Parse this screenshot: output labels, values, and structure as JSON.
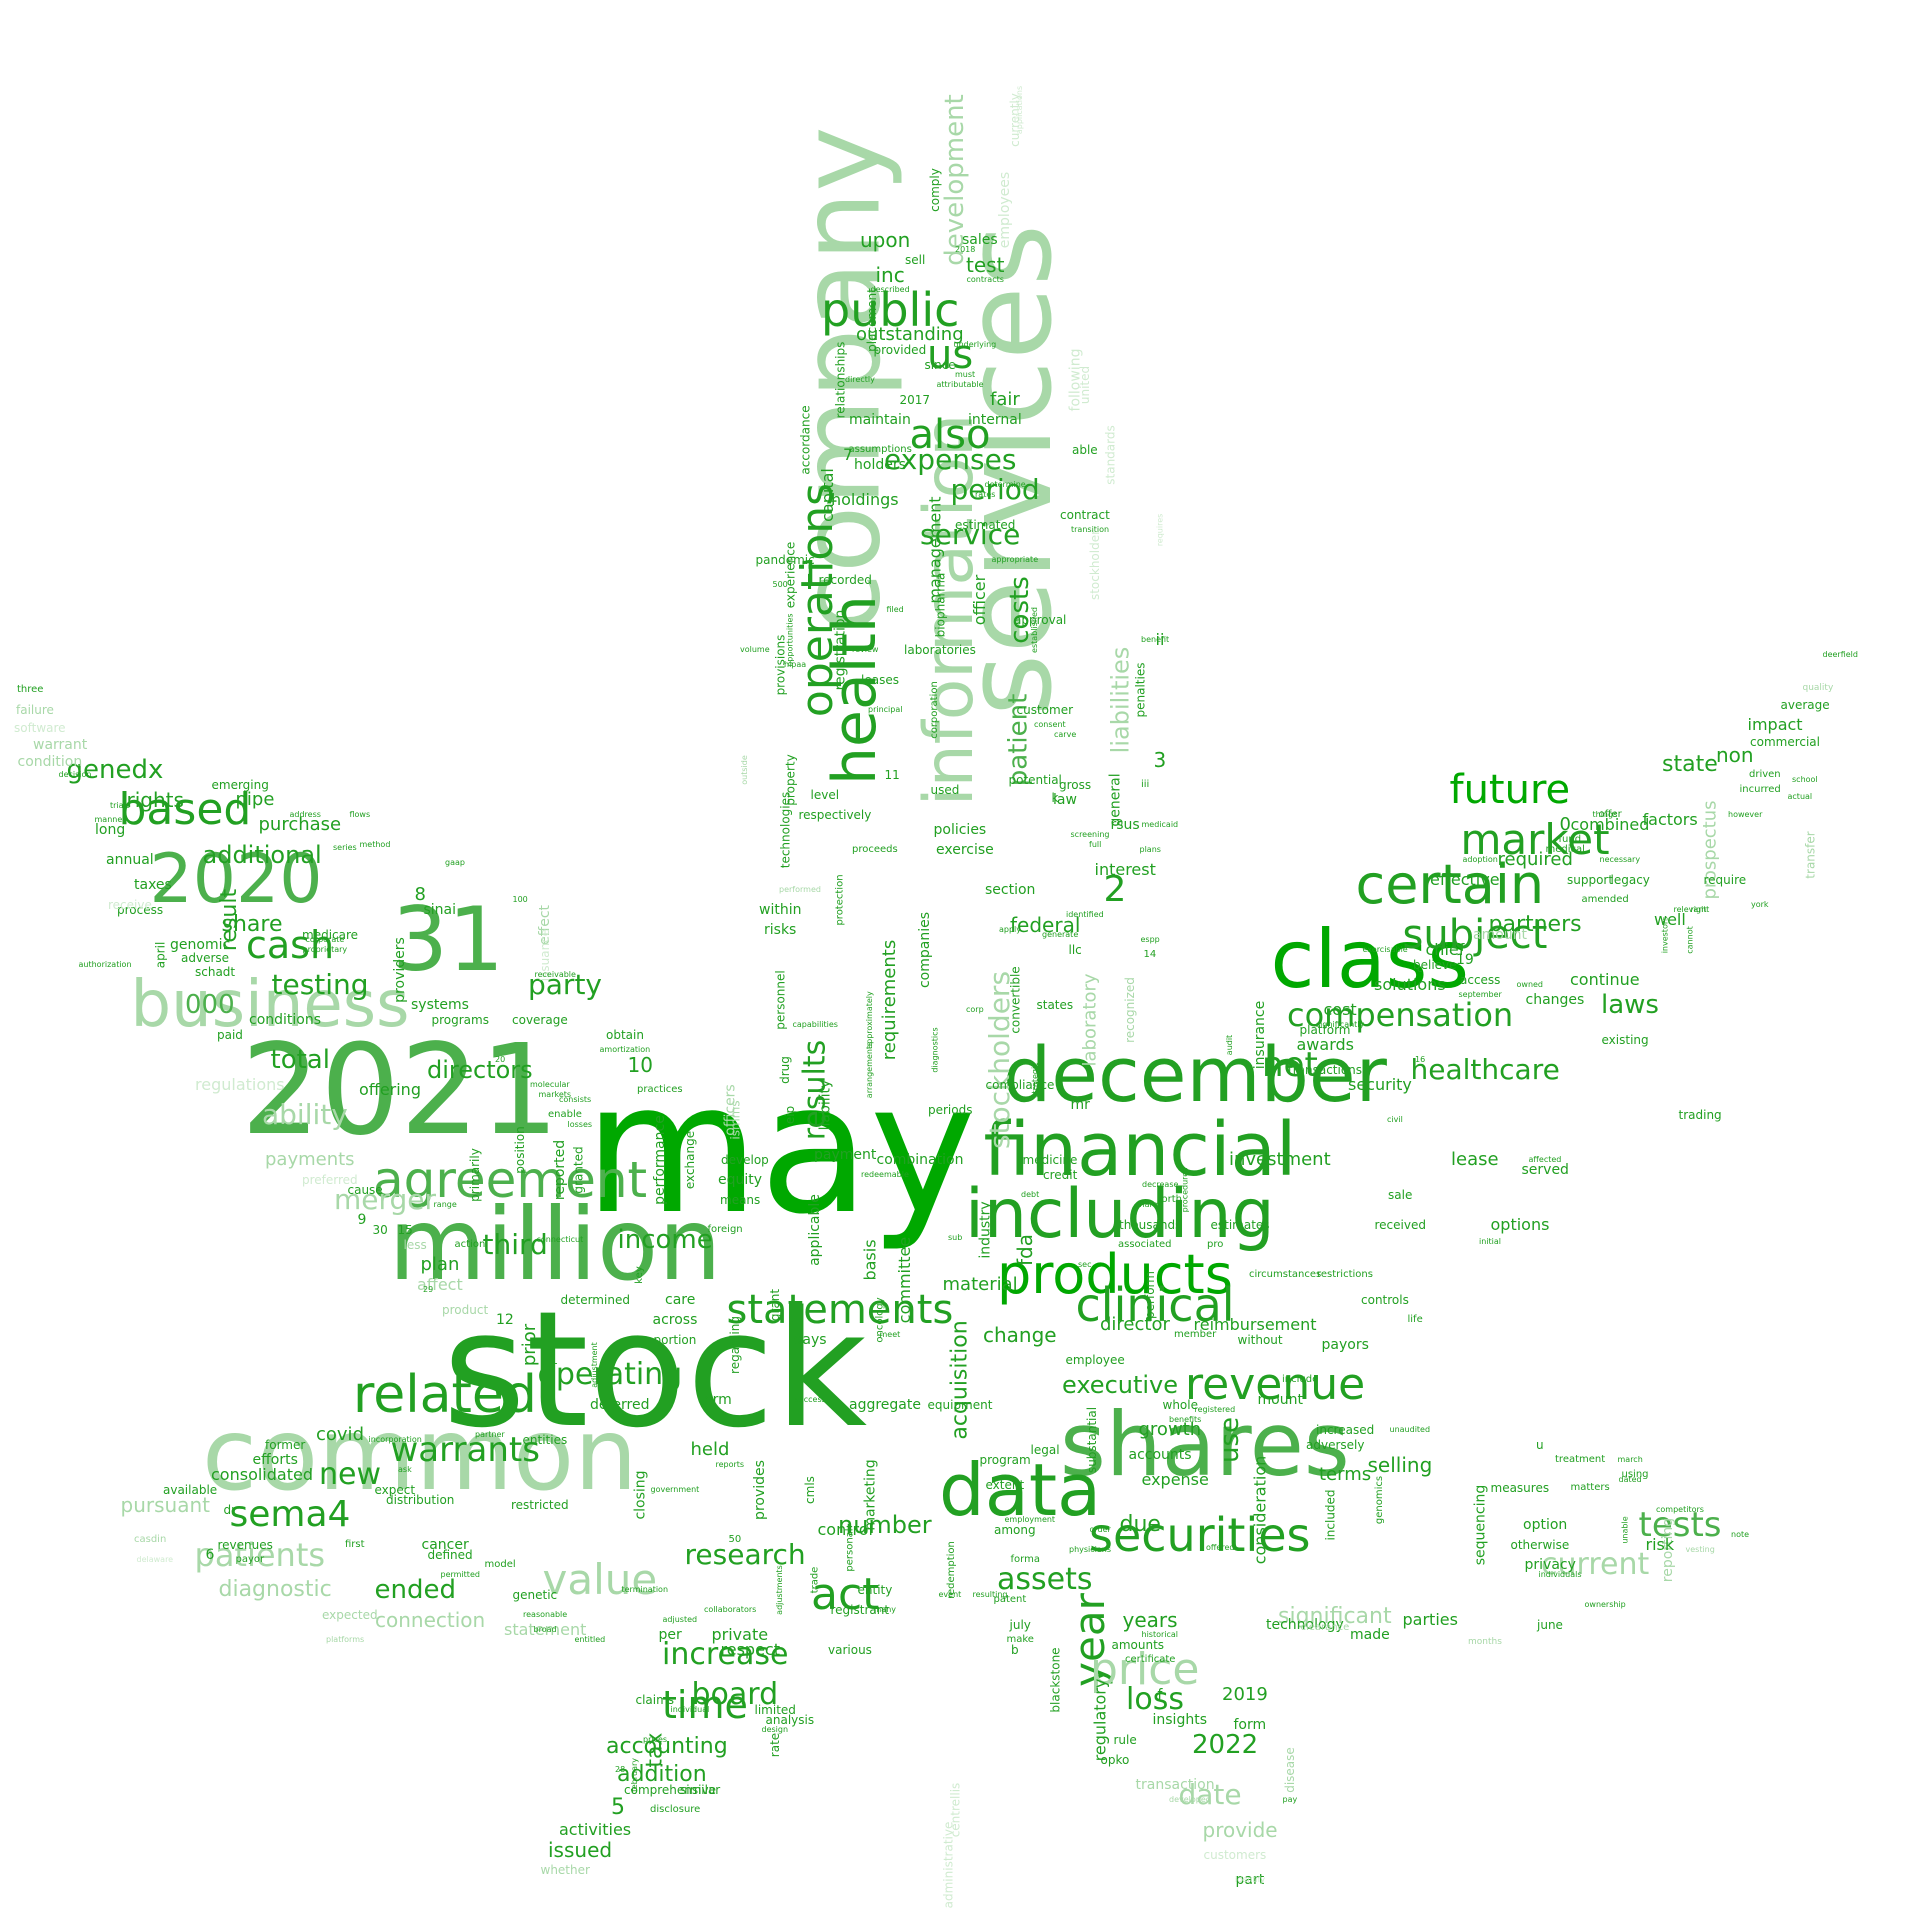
{
  "palette": {
    "dark": "#00a800",
    "mid": "#22a022",
    "medium": "#4cb04c",
    "light": "#a8d8a8",
    "pale": "#d0ebd0"
  },
  "words": [
    "may",
    "stock",
    "million",
    "common",
    "shares",
    "2021",
    "services",
    "company",
    "december",
    "financial",
    "class",
    "information",
    "data",
    "including",
    "health",
    "agreement",
    "products",
    "business",
    "31",
    "2020",
    "securities",
    "related",
    "certain",
    "public",
    "operations",
    "statements",
    "clinical",
    "revenue",
    "year",
    "price",
    "value",
    "act",
    "market",
    "subject",
    "future",
    "patients",
    "tests",
    "cash",
    "based",
    "sema4",
    "time",
    "us",
    "also",
    "compensation",
    "healthcare",
    "results",
    "current",
    "assets",
    "increase",
    "board",
    "research",
    "net",
    "warrants",
    "period",
    "expenses",
    "service",
    "stockholders",
    "costs",
    "patient",
    "liabilities",
    "development",
    "operating",
    "income",
    "merger",
    "ability",
    "laws",
    "partners",
    "third",
    "party",
    "testing",
    "new",
    "total",
    "directors",
    "genedx",
    "additional",
    "rights",
    "purchase",
    "pipe",
    "result",
    "share",
    "000",
    "accounting",
    "addition",
    "tax",
    "executive",
    "loss",
    "date",
    "2022",
    "ended",
    "number",
    "acquisition",
    "laboratory",
    "fda",
    "federal",
    "change",
    "material",
    "director",
    "reimbursement",
    "investment",
    "lease",
    "options",
    "prospectus",
    "state",
    "non",
    "impact",
    "commercial",
    "average",
    "quality",
    "combined",
    "factors",
    "required",
    "effective",
    "amount",
    "chief",
    "well",
    "continue",
    "changes",
    "solutions",
    "security",
    "cost",
    "awards",
    "provide",
    "issued",
    "activities",
    "whether",
    "significant",
    "reporting",
    "risk",
    "privacy",
    "otherwise",
    "option",
    "sequencing",
    "terms",
    "selling",
    "consideration",
    "use",
    "growth",
    "expense",
    "accounts",
    "due",
    "years",
    "regulatory",
    "insights",
    "form",
    "2019",
    "transaction",
    "technology",
    "parties",
    "made",
    "connection",
    "statement",
    "diagnostic",
    "pursuant",
    "consolidated",
    "efforts",
    "covid",
    "held",
    "closing",
    "marketing",
    "provides",
    "private",
    "respect",
    "control",
    "registrant",
    "equipment",
    "aggregate",
    "term",
    "deferred",
    "operating",
    "plan",
    "affect",
    "product",
    "prior",
    "processes",
    "determined",
    "care",
    "across",
    "portion",
    "grant",
    "days",
    "applicable",
    "basis",
    "committee",
    "payment",
    "combination",
    "medicine",
    "credit",
    "industry",
    "perform",
    "employee",
    "offering",
    "preferred",
    "payments",
    "regulations",
    "conditions",
    "systems",
    "programs",
    "coverage",
    "genomic",
    "adverse",
    "schadt",
    "sinai",
    "providers",
    "medicare",
    "taxes",
    "annual",
    "long",
    "process",
    "receive",
    "april",
    "paid",
    "warrant",
    "condition",
    "software",
    "failure",
    "three",
    "emerging",
    "upon",
    "inc",
    "test",
    "sales",
    "sell",
    "outstanding",
    "fair",
    "holdings",
    "capital",
    "management",
    "officer",
    "biopharma",
    "laboratories",
    "leases",
    "review",
    "filed",
    "recorded",
    "experience",
    "pandemic",
    "registration",
    "provisions",
    "property",
    "technologies",
    "level",
    "respectively",
    "policies",
    "exercise",
    "used",
    "law",
    "potential",
    "customer",
    "approval",
    "contract",
    "estimated",
    "internal",
    "able",
    "assumptions",
    "maintain",
    "holders",
    "section",
    "interest",
    "general",
    "rsus",
    "penalties",
    "ii",
    "stockholder",
    "standards",
    "following",
    "united",
    "employees",
    "currently",
    "applications",
    "comply",
    "underlying",
    "attributable",
    "must",
    "provided",
    "since",
    "placement",
    "relationships",
    "directly",
    "accordance",
    "within",
    "risks",
    "personnel",
    "drug",
    "eip",
    "liability",
    "requirements",
    "companies",
    "convertible",
    "periods",
    "compliance",
    "recognized",
    "states",
    "llc",
    "insurance",
    "transactions",
    "platform",
    "existing",
    "access",
    "believe",
    "legacy",
    "support",
    "amended",
    "medical",
    "fund",
    "incurred",
    "driven",
    "require",
    "york",
    "trading",
    "served",
    "sale",
    "received",
    "estimates",
    "thousands",
    "associated",
    "restrictions",
    "controls",
    "payors",
    "life",
    "mount",
    "include",
    "increased",
    "included",
    "adversely",
    "genomics",
    "parties",
    "clearance",
    "months",
    "june",
    "whole",
    "substantial",
    "legal",
    "program",
    "extent",
    "among",
    "forma",
    "patent",
    "redemption",
    "july",
    "make",
    "blackstone",
    "amounts",
    "certificate",
    "historical",
    "opko",
    "disease",
    "customers",
    "part",
    "identify",
    "centrellis",
    "administrative",
    "analysis",
    "limited",
    "rate",
    "design",
    "similar",
    "comprehensive",
    "disclosure",
    "claims",
    "per",
    "genetic",
    "broad",
    "entitled",
    "collaborators",
    "adjusted",
    "entity",
    "many",
    "various",
    "trade",
    "personal",
    "cmls",
    "obtain",
    "amortization",
    "practices",
    "performance",
    "exchange",
    "means",
    "equity",
    "develop",
    "foreign",
    "reported",
    "granted",
    "position",
    "primarily",
    "enable",
    "losses",
    "effect",
    "issuance",
    "officers",
    "ismms",
    "expected",
    "platforms",
    "dr",
    "available",
    "casdin",
    "delaware",
    "cancer",
    "defined",
    "first",
    "revenues",
    "payor",
    "permitted",
    "model",
    "distribution",
    "restricted",
    "expect",
    "ask",
    "former",
    "incorporation",
    "partner",
    "entities",
    "anti",
    "reports",
    "government",
    "termination",
    "success",
    "oncology",
    "meet",
    "redeemable",
    "event",
    "resulting",
    "employment",
    "order",
    "physicians",
    "offered",
    "pay",
    "developed",
    "screening",
    "full",
    "medicaid",
    "plans",
    "benefit",
    "requires",
    "transition",
    "determine",
    "rates",
    "appropriate",
    "established",
    "consent",
    "carve",
    "gross",
    "identified",
    "apply",
    "generate",
    "espp",
    "sec",
    "harm",
    "decrease",
    "debt",
    "forth",
    "sub",
    "pro",
    "member",
    "without",
    "circumstances",
    "registered",
    "benefits",
    "unaudited",
    "measures",
    "matters",
    "treatment",
    "competitors",
    "unable",
    "note",
    "vesting",
    "individuals",
    "ownership",
    "dated",
    "march",
    "using",
    "affected",
    "civil",
    "significantly",
    "audit",
    "procedures",
    "initial",
    "exercisable",
    "september",
    "owned",
    "investors",
    "cannot",
    "relevant",
    "right",
    "school",
    "deerfield",
    "actual",
    "transfer",
    "however",
    "offer",
    "things",
    "necessary",
    "adoption",
    "performed",
    "outside",
    "volume",
    "opportunities",
    "hipaa",
    "principal",
    "corporation",
    "proceeds",
    "protection",
    "capabilities",
    "approximately",
    "arrangements",
    "diagnostics",
    "strategic",
    "corp",
    "trials",
    "address",
    "flows",
    "series",
    "method",
    "gaap",
    "authorization",
    "proprietary",
    "corporate",
    "receivable",
    "molecular",
    "markets",
    "consists",
    "range",
    "cause",
    "less",
    "action",
    "key",
    "connecticut",
    "regarding",
    "adjustment",
    "reasonable",
    "individual",
    "prices",
    "february",
    "adjustments",
    "manner",
    "decision",
    "described",
    "contracts",
    "2018",
    "2017",
    "1",
    "2",
    "3",
    "5",
    "6",
    "7",
    "8",
    "9",
    "10",
    "11",
    "12",
    "14",
    "15",
    "16",
    "19",
    "20",
    "28",
    "29",
    "30",
    "50",
    "100",
    "500",
    "0",
    "b",
    "f",
    "k",
    "u",
    "c",
    "iii",
    "mr",
    "ii",
    "services",
    "rule"
  ]
}
